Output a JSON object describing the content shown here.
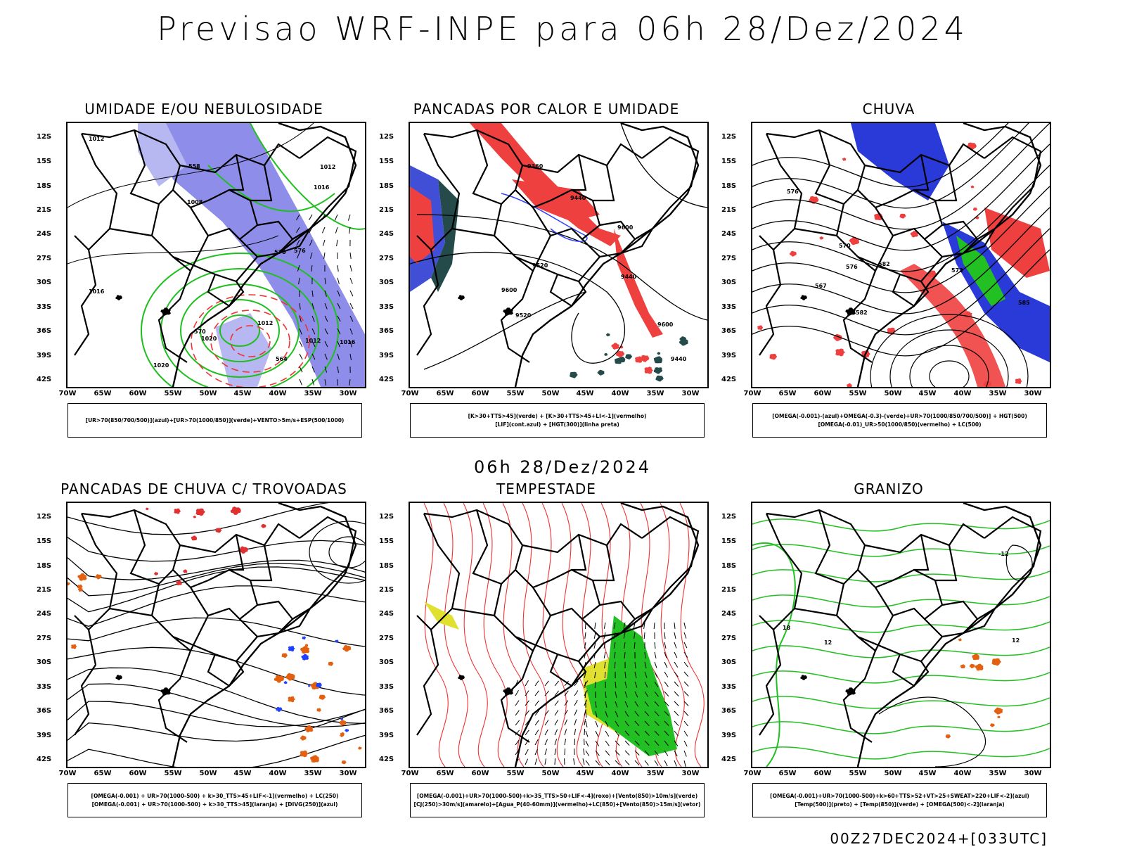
{
  "title": "Previsao WRF-INPE  para 06h 28/Dez/2024",
  "mid_title": "06h 28/Dez/2024",
  "footer": "00Z27DEC2024+[033UTC]",
  "lat_labels": [
    "12S",
    "15S",
    "18S",
    "21S",
    "24S",
    "27S",
    "30S",
    "33S",
    "36S",
    "39S",
    "42S"
  ],
  "lon_labels": [
    "70W",
    "65W",
    "60W",
    "55W",
    "50W",
    "45W",
    "40W",
    "35W",
    "30W"
  ],
  "panels": [
    {
      "title": "UMIDADE E/OU NEBULOSIDADE",
      "legend": [
        "[UR>70(850/700/500)](azul)+[UR>70(1000/850)](verde)+VENTO>5m/s+ESP(500/1000)"
      ],
      "contour_labels": [
        "1012",
        "1012",
        "1012",
        "1016",
        "1016",
        "1016",
        "1020",
        "1020",
        "1012",
        "1008",
        "570",
        "564",
        "558",
        "570",
        "576"
      ]
    },
    {
      "title": "PANCADAS POR CALOR E UMIDADE",
      "legend": [
        "[K>30+TTS>45](verde) + [K>30+TTS>45+LI<-1](vermelho)",
        "[LIF](cont.azul) + [HGT(300)](linha preta)"
      ],
      "contour_labels": [
        "9600",
        "9600",
        "9520",
        "9440",
        "9440",
        "9360",
        "9520",
        "9600",
        "9440"
      ]
    },
    {
      "title": "CHUVA",
      "legend": [
        "[OMEGA(-0.001)-(azul)+OMEGA(-0.3)-(verde)+UR>70(1000/850/700/500)] + HGT(500)",
        "[OMEGA(-0.01)_UR>50(1000/850)(vermelho) + LC(500)"
      ],
      "contour_labels": [
        "582",
        "576",
        "576",
        "573",
        "570",
        "567",
        "585",
        "582"
      ]
    },
    {
      "title": "PANCADAS DE CHUVA C/ TROVOADAS",
      "legend": [
        "[OMEGA(-0.001) + UR>70(1000-500) + k>30_TTS>45+LIF<-1](vermelho) + LC(250)",
        "[OMEGA(-0.001) + UR>70(1000-500) + k>30_TTS>45](laranja) + [DIVG(250)](azul)"
      ],
      "contour_labels": []
    },
    {
      "title": "TEMPESTADE",
      "legend": [
        "[OMEGA(-0.001)+UR>70(1000-500)+k>35_TTS>50+LIF<-4](roxo)+[Vento(850)>10m/s](verde)",
        "[CJ(250)>30m/s](amarelo)+[Agua_P(40-60mm)](vermelho)+LC(850)+[Vento(850)>15m/s](vetor)"
      ],
      "contour_labels": []
    },
    {
      "title": "GRANIZO",
      "legend": [
        "[OMEGA(-0.001)+UR>70(1000-500)+k>60+TTS>52+VT>25+SWEAT>220+LIF<-2](azul)",
        "[Temp(500)](preto) + [Temp(850)](verde) + [OMEGA(500)<-2](laranja)"
      ],
      "contour_labels": [
        "-12",
        "18",
        "12",
        "12"
      ]
    }
  ]
}
